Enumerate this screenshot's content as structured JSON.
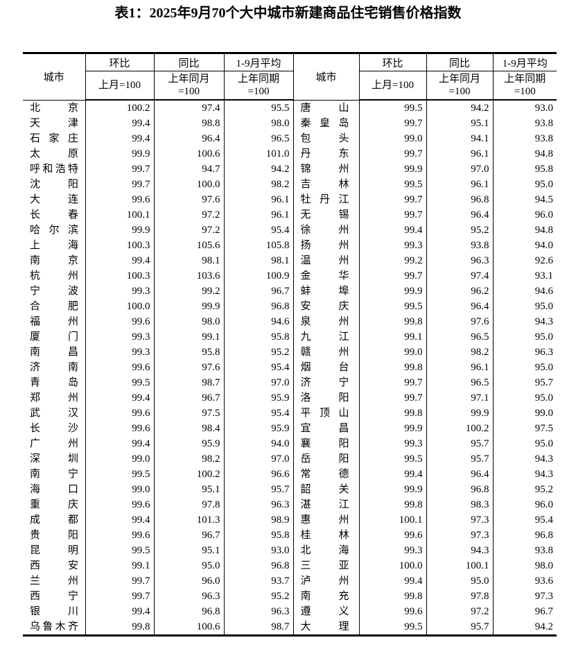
{
  "page": {
    "title": "表1：2025年9月70个大中城市新建商品住宅销售价格指数"
  },
  "table": {
    "headers": {
      "city": "城市",
      "mom": "环比",
      "mom_base": "上月=100",
      "yoy": "同比",
      "yoy_base": "上年同月\n=100",
      "avg": "1-9月平均",
      "avg_base": "上年同期\n=100"
    },
    "left_rows": [
      [
        "北京",
        "100.2",
        "97.4",
        "95.5"
      ],
      [
        "天津",
        "99.4",
        "98.8",
        "98.0"
      ],
      [
        "石家庄",
        "99.4",
        "96.4",
        "96.5"
      ],
      [
        "太原",
        "99.9",
        "100.6",
        "101.0"
      ],
      [
        "呼和浩特",
        "99.7",
        "94.7",
        "94.2"
      ],
      [
        "沈阳",
        "99.7",
        "100.0",
        "98.2"
      ],
      [
        "大连",
        "99.6",
        "97.6",
        "96.1"
      ],
      [
        "长春",
        "100.1",
        "97.2",
        "96.1"
      ],
      [
        "哈尔滨",
        "99.9",
        "97.2",
        "95.4"
      ],
      [
        "上海",
        "100.3",
        "105.6",
        "105.8"
      ],
      [
        "南京",
        "99.4",
        "98.1",
        "98.1"
      ],
      [
        "杭州",
        "100.3",
        "103.6",
        "100.9"
      ],
      [
        "宁波",
        "99.3",
        "99.2",
        "96.7"
      ],
      [
        "合肥",
        "100.0",
        "99.9",
        "96.8"
      ],
      [
        "福州",
        "99.6",
        "98.0",
        "94.6"
      ],
      [
        "厦门",
        "99.3",
        "99.1",
        "95.8"
      ],
      [
        "南昌",
        "99.3",
        "95.8",
        "95.2"
      ],
      [
        "济南",
        "99.6",
        "97.6",
        "95.4"
      ],
      [
        "青岛",
        "99.5",
        "98.7",
        "97.0"
      ],
      [
        "郑州",
        "99.4",
        "96.7",
        "95.9"
      ],
      [
        "武汉",
        "99.6",
        "97.5",
        "95.4"
      ],
      [
        "长沙",
        "99.6",
        "98.4",
        "95.9"
      ],
      [
        "广州",
        "99.4",
        "95.9",
        "94.0"
      ],
      [
        "深圳",
        "99.0",
        "98.2",
        "97.0"
      ],
      [
        "南宁",
        "99.5",
        "100.2",
        "96.6"
      ],
      [
        "海口",
        "99.0",
        "95.1",
        "95.7"
      ],
      [
        "重庆",
        "99.6",
        "97.8",
        "96.3"
      ],
      [
        "成都",
        "99.4",
        "101.3",
        "98.9"
      ],
      [
        "贵阳",
        "99.6",
        "96.7",
        "95.8"
      ],
      [
        "昆明",
        "99.5",
        "95.1",
        "93.0"
      ],
      [
        "西安",
        "99.1",
        "95.0",
        "96.8"
      ],
      [
        "兰州",
        "99.7",
        "96.0",
        "93.7"
      ],
      [
        "西宁",
        "99.7",
        "96.3",
        "95.2"
      ],
      [
        "银川",
        "99.4",
        "96.8",
        "96.3"
      ],
      [
        "乌鲁木齐",
        "99.8",
        "100.6",
        "98.7"
      ]
    ],
    "right_rows": [
      [
        "唐山",
        "99.5",
        "94.2",
        "93.0"
      ],
      [
        "秦皇岛",
        "99.7",
        "95.1",
        "93.8"
      ],
      [
        "包头",
        "99.0",
        "94.1",
        "93.8"
      ],
      [
        "丹东",
        "99.7",
        "96.1",
        "94.8"
      ],
      [
        "锦州",
        "99.9",
        "97.0",
        "95.8"
      ],
      [
        "吉林",
        "99.5",
        "96.1",
        "95.0"
      ],
      [
        "牡丹江",
        "99.7",
        "96.8",
        "94.5"
      ],
      [
        "无锡",
        "99.7",
        "96.4",
        "96.0"
      ],
      [
        "徐州",
        "99.4",
        "95.2",
        "94.8"
      ],
      [
        "扬州",
        "99.3",
        "93.8",
        "94.0"
      ],
      [
        "温州",
        "99.2",
        "96.3",
        "92.6"
      ],
      [
        "金华",
        "99.7",
        "97.4",
        "93.1"
      ],
      [
        "蚌埠",
        "99.9",
        "96.2",
        "94.6"
      ],
      [
        "安庆",
        "99.5",
        "96.4",
        "95.0"
      ],
      [
        "泉州",
        "99.8",
        "97.6",
        "94.3"
      ],
      [
        "九江",
        "99.1",
        "96.5",
        "95.0"
      ],
      [
        "赣州",
        "99.0",
        "98.2",
        "96.3"
      ],
      [
        "烟台",
        "99.8",
        "96.1",
        "95.0"
      ],
      [
        "济宁",
        "99.7",
        "96.5",
        "95.7"
      ],
      [
        "洛阳",
        "99.7",
        "97.1",
        "95.0"
      ],
      [
        "平顶山",
        "99.8",
        "99.9",
        "99.0"
      ],
      [
        "宜昌",
        "99.9",
        "100.2",
        "97.5"
      ],
      [
        "襄阳",
        "99.3",
        "95.7",
        "95.0"
      ],
      [
        "岳阳",
        "99.5",
        "95.7",
        "94.3"
      ],
      [
        "常德",
        "99.4",
        "96.4",
        "94.3"
      ],
      [
        "韶关",
        "99.9",
        "96.8",
        "95.2"
      ],
      [
        "湛江",
        "99.8",
        "98.3",
        "96.0"
      ],
      [
        "惠州",
        "100.1",
        "97.3",
        "95.4"
      ],
      [
        "桂林",
        "99.6",
        "97.3",
        "96.8"
      ],
      [
        "北海",
        "99.3",
        "94.3",
        "93.8"
      ],
      [
        "三亚",
        "100.0",
        "100.1",
        "98.0"
      ],
      [
        "泸州",
        "99.4",
        "95.0",
        "93.6"
      ],
      [
        "南充",
        "99.8",
        "97.8",
        "97.3"
      ],
      [
        "遵义",
        "99.6",
        "97.2",
        "96.7"
      ],
      [
        "大理",
        "99.5",
        "95.7",
        "94.2"
      ]
    ]
  }
}
